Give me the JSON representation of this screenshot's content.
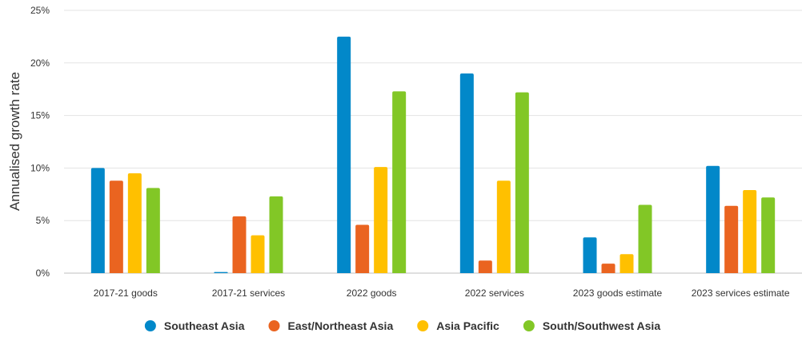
{
  "chart_data": {
    "type": "bar",
    "ylabel": "Annualised growth rate",
    "xlabel": "",
    "ylim": [
      0,
      25
    ],
    "yticks": [
      0,
      5,
      10,
      15,
      20,
      25
    ],
    "ytick_labels": [
      "0%",
      "5%",
      "10%",
      "15%",
      "20%",
      "25%"
    ],
    "grid": true,
    "legend_position": "bottom",
    "categories": [
      "2017-21 goods",
      "2017-21 services",
      "2022 goods",
      "2022 services",
      "2023 goods estimate",
      "2023 services estimate"
    ],
    "series": [
      {
        "name": "Southeast Asia",
        "color": "#0288c9",
        "values": [
          10.0,
          0.1,
          22.5,
          19.0,
          3.4,
          10.2
        ]
      },
      {
        "name": "East/Northeast Asia",
        "color": "#ea6420",
        "values": [
          8.8,
          5.4,
          4.6,
          1.2,
          0.9,
          6.4
        ]
      },
      {
        "name": "Asia Pacific",
        "color": "#ffc000",
        "values": [
          9.5,
          3.6,
          10.1,
          8.8,
          1.8,
          7.9
        ]
      },
      {
        "name": "South/Southwest Asia",
        "color": "#82c726",
        "values": [
          8.1,
          7.3,
          17.3,
          17.2,
          6.5,
          7.2
        ]
      }
    ]
  }
}
